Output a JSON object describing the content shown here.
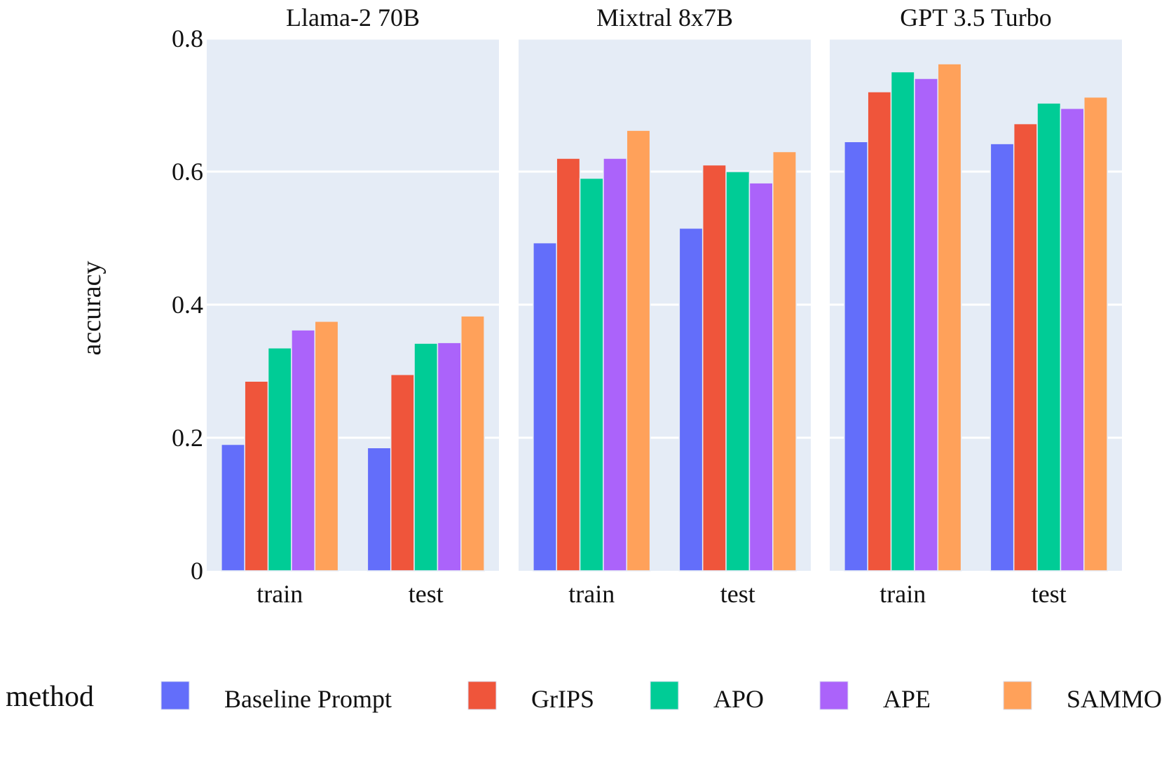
{
  "chart_data": {
    "type": "bar",
    "facet_by": "model",
    "ylabel": "accuracy",
    "ylim": [
      0,
      0.8
    ],
    "yticks": [
      0,
      0.2,
      0.4,
      0.6,
      0.8
    ],
    "ytick_labels": [
      "0",
      "0.2",
      "0.4",
      "0.6",
      "0.8"
    ],
    "grid": true,
    "legend": {
      "title": "method",
      "position": "bottom"
    },
    "categories": [
      "train",
      "test"
    ],
    "series_names": [
      "Baseline Prompt",
      "GrIPS",
      "APO",
      "APE",
      "SAMMO"
    ],
    "colors": [
      "#636efa",
      "#ef553b",
      "#00cc96",
      "#ab63fa",
      "#ffa15a"
    ],
    "panels": [
      {
        "title": "Llama-2 70B",
        "series": [
          {
            "name": "Baseline Prompt",
            "values": [
              0.19,
              0.185
            ]
          },
          {
            "name": "GrIPS",
            "values": [
              0.285,
              0.295
            ]
          },
          {
            "name": "APO",
            "values": [
              0.335,
              0.342
            ]
          },
          {
            "name": "APE",
            "values": [
              0.362,
              0.343
            ]
          },
          {
            "name": "SAMMO",
            "values": [
              0.375,
              0.383
            ]
          }
        ]
      },
      {
        "title": "Mixtral 8x7B",
        "series": [
          {
            "name": "Baseline Prompt",
            "values": [
              0.493,
              0.515
            ]
          },
          {
            "name": "GrIPS",
            "values": [
              0.62,
              0.61
            ]
          },
          {
            "name": "APO",
            "values": [
              0.59,
              0.6
            ]
          },
          {
            "name": "APE",
            "values": [
              0.62,
              0.583
            ]
          },
          {
            "name": "SAMMO",
            "values": [
              0.662,
              0.63
            ]
          }
        ]
      },
      {
        "title": "GPT 3.5 Turbo",
        "series": [
          {
            "name": "Baseline Prompt",
            "values": [
              0.645,
              0.642
            ]
          },
          {
            "name": "GrIPS",
            "values": [
              0.72,
              0.672
            ]
          },
          {
            "name": "APO",
            "values": [
              0.75,
              0.703
            ]
          },
          {
            "name": "APE",
            "values": [
              0.74,
              0.695
            ]
          },
          {
            "name": "SAMMO",
            "values": [
              0.762,
              0.712
            ]
          }
        ]
      }
    ]
  }
}
